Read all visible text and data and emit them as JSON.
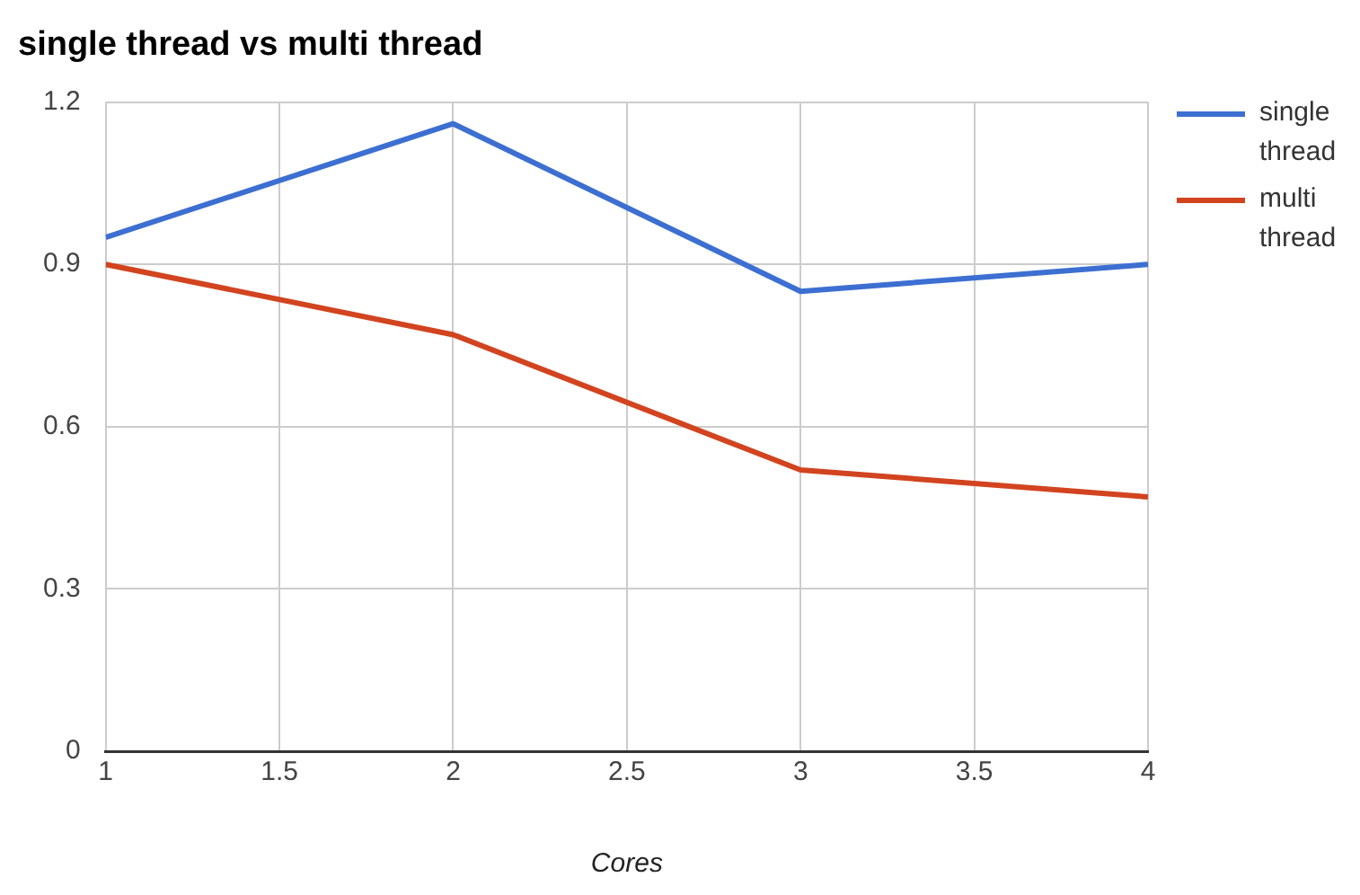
{
  "chart_data": {
    "type": "line",
    "title": "single thread vs multi thread",
    "xlabel": "Cores",
    "x": [
      1,
      2,
      3,
      4
    ],
    "series": [
      {
        "name": "single thread",
        "color": "#3c6fd1",
        "values": [
          0.95,
          1.16,
          0.85,
          0.9
        ]
      },
      {
        "name": "multi thread",
        "color": "#d2441f",
        "values": [
          0.9,
          0.77,
          0.52,
          0.47
        ]
      }
    ],
    "xlim": [
      1,
      4
    ],
    "xticks": [
      1,
      1.5,
      2,
      2.5,
      3,
      3.5,
      4
    ],
    "ylim": [
      0,
      1.2
    ],
    "yticks": [
      0,
      0.3,
      0.6,
      0.9,
      1.2
    ],
    "grid": true,
    "legend": "right",
    "marker": "none",
    "line_style": "solid"
  }
}
